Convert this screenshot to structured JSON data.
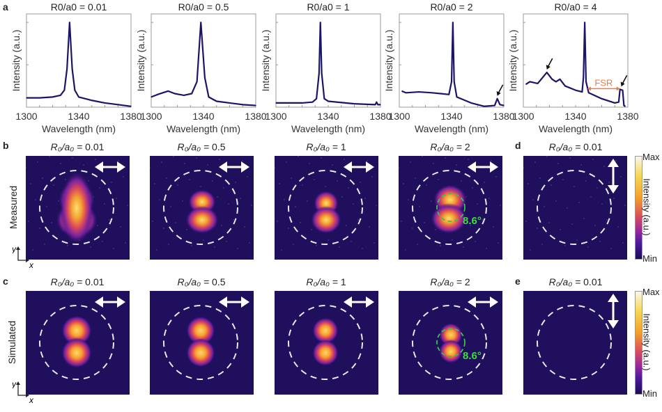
{
  "labels": {
    "a": "a",
    "b": "b",
    "c": "c",
    "d": "d",
    "e": "e",
    "measured": "Measured",
    "simulated": "Simulated",
    "x": "x",
    "y": "y",
    "angle": "8.6°",
    "max": "Max",
    "min": "Min",
    "colorbar": "Intensity (a.u.)",
    "fsr": "FSR"
  },
  "ratio_prefix": "R₀/a₀ = ",
  "row_b_titles": [
    "0.01",
    "0.5",
    "1",
    "2"
  ],
  "row_c_titles": [
    "0.01",
    "0.5",
    "1",
    "2"
  ],
  "panel_d_title": "0.01",
  "panel_e_title": "0.01",
  "colors": {
    "line": "#1c1466",
    "fsr": "#f07a3a",
    "green": "#3ddc3d",
    "bg": "#1f0f5c"
  },
  "chart_data": [
    {
      "type": "line",
      "title": "R0/a0 = 0.01",
      "xlabel": "Wavelength (nm)",
      "ylabel": "Intensity (a.u.)",
      "xlim": [
        1300,
        1380
      ],
      "xticks": [
        "1300",
        "1340",
        "1380"
      ],
      "ylim": [
        0,
        1.1
      ],
      "x": [
        1300,
        1310,
        1320,
        1326,
        1329,
        1331,
        1333,
        1335,
        1337,
        1340,
        1350,
        1360,
        1370,
        1380
      ],
      "y": [
        0.11,
        0.11,
        0.12,
        0.14,
        0.2,
        0.45,
        1.0,
        0.45,
        0.2,
        0.12,
        0.08,
        0.05,
        0.03,
        0.01
      ]
    },
    {
      "type": "line",
      "title": "R0/a0 = 0.5",
      "xlabel": "Wavelength (nm)",
      "ylabel": "Intensity (a.u.)",
      "xlim": [
        1300,
        1380
      ],
      "xticks": [
        "1300",
        "1340",
        "1380"
      ],
      "ylim": [
        0,
        1.1
      ],
      "x": [
        1300,
        1305,
        1313,
        1318,
        1325,
        1331,
        1335,
        1338,
        1341,
        1344,
        1350,
        1360,
        1370,
        1380
      ],
      "y": [
        0.12,
        0.15,
        0.19,
        0.16,
        0.14,
        0.16,
        0.3,
        1.0,
        0.35,
        0.12,
        0.07,
        0.05,
        0.03,
        0.02
      ]
    },
    {
      "type": "line",
      "title": "R0/a0 = 1",
      "xlabel": "Wavelength (nm)",
      "ylabel": "Intensity (a.u.)",
      "xlim": [
        1300,
        1380
      ],
      "xticks": [
        "1300",
        "1340",
        "1380"
      ],
      "ylim": [
        0,
        1.1
      ],
      "x": [
        1300,
        1320,
        1328,
        1331,
        1333,
        1334,
        1335,
        1337,
        1340,
        1360,
        1376,
        1377,
        1378,
        1380
      ],
      "y": [
        0.05,
        0.05,
        0.06,
        0.1,
        0.4,
        1.0,
        0.4,
        0.1,
        0.07,
        0.04,
        0.03,
        0.06,
        0.03,
        0.03
      ]
    },
    {
      "type": "line",
      "title": "R0/a0 = 2",
      "xlabel": "Wavelength (nm)",
      "ylabel": "Intensity (a.u.)",
      "xlim": [
        1300,
        1380
      ],
      "xticks": [
        "1300",
        "1340",
        "1380"
      ],
      "ylim": [
        0,
        1.1
      ],
      "x": [
        1302,
        1305,
        1315,
        1325,
        1338,
        1340,
        1341,
        1342,
        1344,
        1355,
        1365,
        1373,
        1375,
        1377,
        1380
      ],
      "y": [
        0.19,
        0.17,
        0.18,
        0.17,
        0.15,
        0.3,
        1.0,
        0.3,
        0.12,
        0.05,
        0.01,
        0.02,
        0.1,
        0.03,
        0.02
      ],
      "arrows": [
        1375
      ]
    },
    {
      "type": "line",
      "title": "R0/a0 = 4",
      "xlabel": "Wavelength (nm)",
      "ylabel": "Intensity (a.u.)",
      "xlim": [
        1300,
        1380
      ],
      "xticks": [
        "1300",
        "1340",
        "1380"
      ],
      "ylim": [
        0,
        1.1
      ],
      "x": [
        1302,
        1305,
        1308,
        1311,
        1318,
        1322,
        1325,
        1328,
        1332,
        1340,
        1345,
        1346,
        1347,
        1348,
        1350,
        1360,
        1370,
        1373,
        1374,
        1376,
        1377,
        1378
      ],
      "y": [
        0.27,
        0.3,
        0.29,
        0.28,
        0.41,
        0.33,
        0.3,
        0.33,
        0.25,
        0.2,
        0.18,
        0.35,
        1.0,
        0.3,
        0.17,
        0.1,
        0.05,
        0.06,
        0.21,
        0.2,
        0.02,
        0.01
      ],
      "arrows": [
        1318,
        1375
      ],
      "fsr": [
        1349,
        1374
      ]
    }
  ]
}
